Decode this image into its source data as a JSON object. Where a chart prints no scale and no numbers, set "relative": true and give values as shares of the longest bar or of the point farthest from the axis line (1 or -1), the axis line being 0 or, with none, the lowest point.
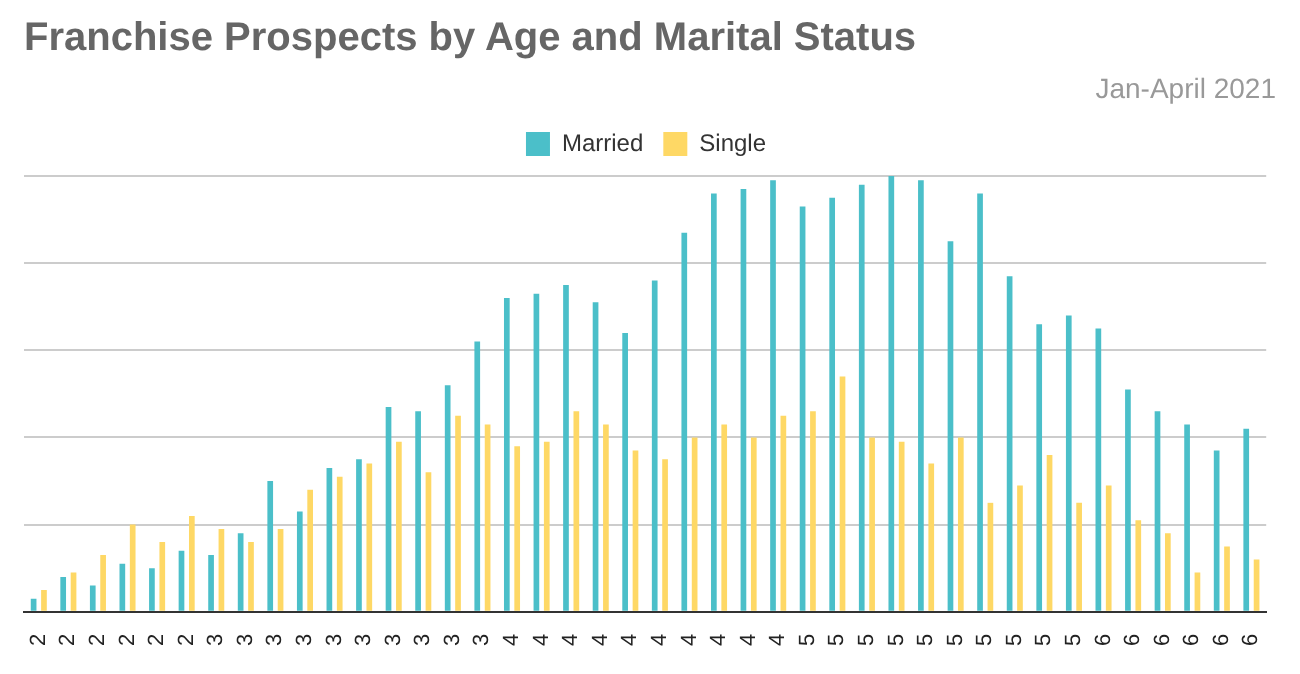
{
  "chart_data": {
    "type": "bar",
    "title": "Franchise Prospects by Age and Marital Status",
    "annotations": [
      "Jan-April 2021"
    ],
    "categories": [
      "2",
      "2",
      "2",
      "2",
      "2",
      "2",
      "3",
      "3",
      "3",
      "3",
      "3",
      "3",
      "3",
      "3",
      "3",
      "3",
      "4",
      "4",
      "4",
      "4",
      "4",
      "4",
      "4",
      "4",
      "4",
      "4",
      "5",
      "5",
      "5",
      "5",
      "5",
      "5",
      "5",
      "5",
      "5",
      "5",
      "6",
      "6",
      "6",
      "6",
      "6",
      "6"
    ],
    "series": [
      {
        "name": "Married",
        "color": "#4bbfc9",
        "values": [
          0.03,
          0.08,
          0.06,
          0.11,
          0.1,
          0.14,
          0.13,
          0.18,
          0.3,
          0.23,
          0.33,
          0.35,
          0.47,
          0.46,
          0.52,
          0.62,
          0.72,
          0.73,
          0.75,
          0.71,
          0.64,
          0.76,
          0.87,
          0.96,
          0.97,
          0.99,
          0.93,
          0.95,
          0.98,
          1,
          0.99,
          0.85,
          0.96,
          0.77,
          0.66,
          0.68,
          0.65,
          0.51,
          0.46,
          0.43,
          0.37,
          0.42
        ]
      },
      {
        "name": "Single",
        "color": "#fed865",
        "values": [
          0.05,
          0.09,
          0.13,
          0.2,
          0.16,
          0.22,
          0.19,
          0.16,
          0.19,
          0.28,
          0.31,
          0.34,
          0.39,
          0.32,
          0.45,
          0.43,
          0.38,
          0.39,
          0.46,
          0.43,
          0.37,
          0.35,
          0.4,
          0.43,
          0.4,
          0.45,
          0.46,
          0.54,
          0.4,
          0.39,
          0.34,
          0.4,
          0.25,
          0.29,
          0.36,
          0.25,
          0.29,
          0.21,
          0.18,
          0.09,
          0.15,
          0.12
        ]
      }
    ],
    "relative": true,
    "grid": "y",
    "legend": "top"
  }
}
